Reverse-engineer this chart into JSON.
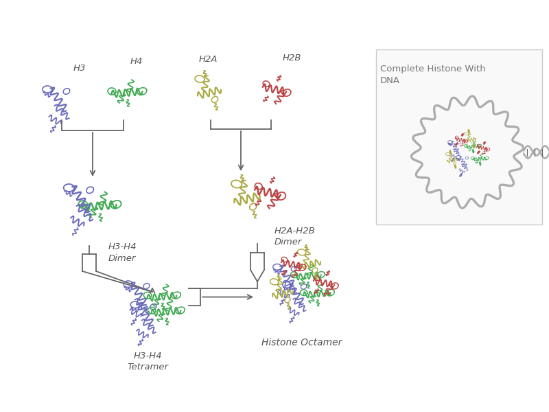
{
  "bg_color": "#ffffff",
  "line_color": "#666666",
  "colors": {
    "H3": "#6b6bbb",
    "H4": "#44aa55",
    "H2A": "#aaaa44",
    "H2B": "#bb4444",
    "DNA": "#aaaaaa",
    "DNA_light": "#cccccc"
  },
  "labels": {
    "H3": "H3",
    "H4": "H4",
    "H2A": "H2A",
    "H2B": "H2B",
    "dimer1": "H3-H4\nDimer",
    "dimer2": "H2A-H2B\nDimer",
    "tetramer": "H3-H4\nTetramer",
    "octamer": "Histone Octamer",
    "complete": "Complete Histone With\nDNA"
  },
  "label_fontsize": 9,
  "title_fontsize": 9
}
